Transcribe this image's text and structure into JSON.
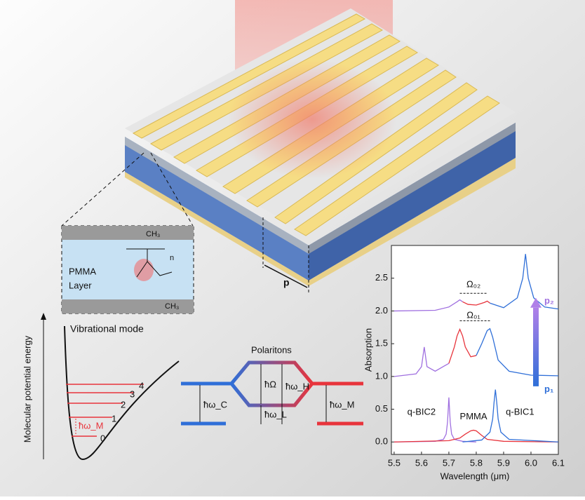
{
  "device": {
    "pitch_label": "p",
    "pmma_label": [
      "PMMA",
      "Layer"
    ],
    "methyl_top": "CH₃",
    "methyl_bottom": "CH₃",
    "repeat": "n"
  },
  "energy": {
    "axis_label": "Molecular potential energy",
    "title": "Vibrational mode",
    "levels": [
      "0",
      "1",
      "2",
      "3",
      "4"
    ],
    "quantum": "ħω_M"
  },
  "polaritons": {
    "title": "Polaritons",
    "rabi": "ħΩ",
    "upper": "ħω_H",
    "lower": "ħω_L",
    "cavity": "ħω_C",
    "molecule": "ħω_M"
  },
  "chart_data": {
    "type": "line",
    "xlabel": "Wavelength (μm)",
    "ylabel": "Absorption",
    "xlim": [
      5.49,
      6.1
    ],
    "ylim": [
      -0.19,
      3.0
    ],
    "xticks": [
      5.5,
      5.6,
      5.7,
      5.8,
      5.9,
      {
        "value": 6,
        "label": "6.0"
      },
      6.1
    ],
    "yticks": [
      {
        "value": 0,
        "label": "0.0"
      },
      0.5,
      {
        "value": 1,
        "label": "1.0"
      },
      1.5,
      {
        "value": 2,
        "label": "2.0"
      },
      2.5
    ],
    "series": [
      {
        "color": "#a070e0",
        "x": [
          5.5,
          5.65,
          5.68,
          5.69,
          5.695,
          5.7,
          5.705,
          5.71,
          5.72,
          5.75,
          5.8
        ],
        "values": [
          0,
          0.01,
          0.04,
          0.12,
          0.3,
          0.68,
          0.3,
          0.12,
          0.04,
          0.01,
          0
        ]
      },
      {
        "color": "#e8343c",
        "x": [
          5.5,
          5.7,
          5.74,
          5.76,
          5.78,
          5.79,
          5.8,
          5.82,
          5.84,
          5.9,
          6.1
        ],
        "values": [
          0,
          0.02,
          0.06,
          0.12,
          0.17,
          0.18,
          0.17,
          0.1,
          0.04,
          0.01,
          0
        ]
      },
      {
        "color": "#2f6fd8",
        "x": [
          5.75,
          5.82,
          5.85,
          5.86,
          5.865,
          5.87,
          5.875,
          5.88,
          5.89,
          5.92,
          6.1
        ],
        "values": [
          0,
          0.03,
          0.15,
          0.35,
          0.6,
          0.8,
          0.6,
          0.35,
          0.15,
          0.04,
          0
        ]
      },
      {
        "color": "#a070e0",
        "x": [
          5.5,
          5.58,
          5.6,
          5.605,
          5.61,
          5.615,
          5.62,
          5.65,
          5.7
        ],
        "values": [
          1.0,
          1.04,
          1.15,
          1.3,
          1.45,
          1.3,
          1.15,
          1.08,
          1.2
        ]
      },
      {
        "color": "#e8343c",
        "x": [
          5.7,
          5.72,
          5.73,
          5.74,
          5.75,
          5.76,
          5.78,
          5.8
        ],
        "values": [
          1.2,
          1.45,
          1.62,
          1.72,
          1.62,
          1.45,
          1.3,
          1.32
        ]
      },
      {
        "color": "#2f6fd8",
        "x": [
          5.8,
          5.82,
          5.84,
          5.85,
          5.86,
          5.88,
          5.92,
          6.0,
          6.1
        ],
        "values": [
          1.32,
          1.5,
          1.7,
          1.73,
          1.6,
          1.25,
          1.08,
          1.02,
          1.01
        ]
      },
      {
        "color": "#a070e0",
        "x": [
          5.5,
          5.65,
          5.7,
          5.73,
          5.74,
          5.75
        ],
        "values": [
          2.0,
          2.01,
          2.06,
          2.14,
          2.17,
          2.14
        ]
      },
      {
        "color": "#e8343c",
        "x": [
          5.75,
          5.77,
          5.8,
          5.83,
          5.84,
          5.85
        ],
        "values": [
          2.14,
          2.1,
          2.09,
          2.13,
          2.15,
          2.12
        ]
      },
      {
        "color": "#2f6fd8",
        "x": [
          5.85,
          5.9,
          5.95,
          5.97,
          5.98,
          5.99,
          6.01,
          6.05,
          6.1
        ],
        "values": [
          2.12,
          2.05,
          2.2,
          2.5,
          2.87,
          2.5,
          2.2,
          2.06,
          2.03
        ]
      }
    ],
    "annotations": [
      "q-BIC2",
      "PMMA",
      "q-BIC1",
      "Ω₀₁",
      "Ω₀₂",
      "p₂",
      "p₁"
    ]
  }
}
